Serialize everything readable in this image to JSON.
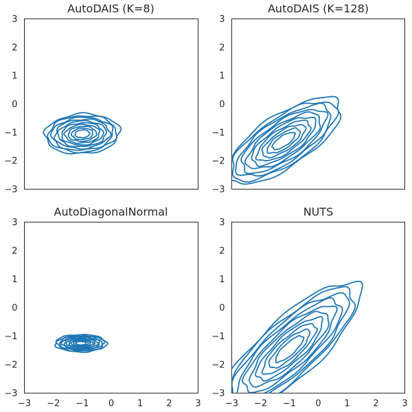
{
  "chart_data": [
    {
      "type": "contour",
      "title": "AutoDAIS (K=8)",
      "xlim": [
        -3,
        3
      ],
      "ylim": [
        -3,
        3
      ],
      "x_ticks_shown": false,
      "y_ticks": [
        -3,
        -2,
        -1,
        0,
        1,
        2,
        3
      ],
      "y_tick_labels": [
        "−3",
        "−2",
        "−1",
        "0",
        "1",
        "2",
        "3"
      ],
      "color": "#1f77b4",
      "mean": [
        -1.0,
        -1.05
      ],
      "std": [
        0.55,
        0.3
      ],
      "correlation": 0.08,
      "contour_levels": 10
    },
    {
      "type": "contour",
      "title": "AutoDAIS (K=128)",
      "xlim": [
        -3,
        3
      ],
      "ylim": [
        -3,
        3
      ],
      "x_ticks_shown": false,
      "y_ticks": [
        -3,
        -2,
        -1,
        0,
        1,
        2,
        3
      ],
      "y_tick_labels": [
        "−3",
        "−2",
        "−1",
        "0",
        "1",
        "2",
        "3"
      ],
      "color": "#1f77b4",
      "mean": [
        -1.2,
        -1.3
      ],
      "std": [
        0.85,
        0.65
      ],
      "correlation": 0.72,
      "contour_levels": 10
    },
    {
      "type": "contour",
      "title": "AutoDiagonalNormal",
      "xlim": [
        -3,
        3
      ],
      "ylim": [
        -3,
        3
      ],
      "x_ticks": [
        -3,
        -2,
        -1,
        0,
        1,
        2,
        3
      ],
      "x_tick_labels": [
        "−3",
        "−2",
        "−1",
        "0",
        "1",
        "2",
        "3"
      ],
      "y_ticks": [
        -3,
        -2,
        -1,
        0,
        1,
        2,
        3
      ],
      "y_tick_labels": [
        "−3",
        "−2",
        "−1",
        "0",
        "1",
        "2",
        "3"
      ],
      "color": "#1f77b4",
      "mean": [
        -1.05,
        -1.25
      ],
      "std": [
        0.38,
        0.13
      ],
      "correlation": 0.0,
      "contour_levels": 10
    },
    {
      "type": "contour",
      "title": "NUTS",
      "xlim": [
        -3,
        3
      ],
      "ylim": [
        -3,
        3
      ],
      "x_ticks": [
        -3,
        -2,
        -1,
        0,
        1,
        2,
        3
      ],
      "x_tick_labels": [
        "−3",
        "−2",
        "−1",
        "0",
        "1",
        "2",
        "3"
      ],
      "y_ticks": [
        -3,
        -2,
        -1,
        0,
        1,
        2,
        3
      ],
      "y_tick_labels": [
        "−3",
        "−2",
        "−1",
        "0",
        "1",
        "2",
        "3"
      ],
      "color": "#1f77b4",
      "mean": [
        -1.0,
        -1.45
      ],
      "std": [
        1.05,
        1.0
      ],
      "correlation": 0.82,
      "contour_levels": 10
    }
  ]
}
